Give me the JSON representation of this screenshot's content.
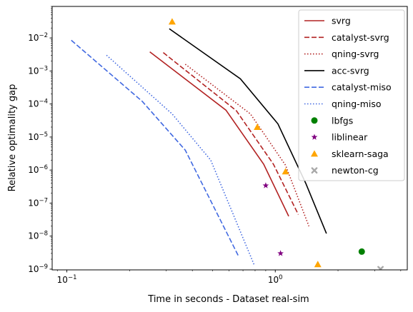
{
  "chart_data": {
    "type": "line",
    "title": "",
    "xlabel": "Time in seconds - Dataset real-sim",
    "ylabel": "Relative optimality gap",
    "xscale": "log",
    "yscale": "log",
    "xlim": [
      0.085,
      4.3
    ],
    "ylim": [
      9.5e-10,
      0.09
    ],
    "x_ticks": [
      {
        "value": 0.1,
        "base": "10",
        "exp": "−1"
      },
      {
        "value": 1,
        "base": "10",
        "exp": "0"
      }
    ],
    "y_ticks": [
      {
        "value": 1e-09,
        "base": "10",
        "exp": "−9"
      },
      {
        "value": 1e-08,
        "base": "10",
        "exp": "−8"
      },
      {
        "value": 1e-07,
        "base": "10",
        "exp": "−7"
      },
      {
        "value": 1e-06,
        "base": "10",
        "exp": "−6"
      },
      {
        "value": 1e-05,
        "base": "10",
        "exp": "−5"
      },
      {
        "value": 0.0001,
        "base": "10",
        "exp": "−4"
      },
      {
        "value": 0.001,
        "base": "10",
        "exp": "−3"
      },
      {
        "value": 0.01,
        "base": "10",
        "exp": "−2"
      }
    ],
    "legend_position": "top-right",
    "series": [
      {
        "name": "svrg",
        "kind": "line",
        "color": "#b22222",
        "dash": "solid",
        "x": [
          0.25,
          0.58,
          0.88,
          1.16
        ],
        "y": [
          0.0038,
          6.5e-05,
          1.5e-06,
          4e-08
        ]
      },
      {
        "name": "catalyst-svrg",
        "kind": "line",
        "color": "#b22222",
        "dash": "dashed",
        "x": [
          0.29,
          0.65,
          0.98,
          1.29
        ],
        "y": [
          0.0036,
          6.3e-05,
          1.5e-06,
          4.5e-08
        ]
      },
      {
        "name": "qning-svrg",
        "kind": "line",
        "color": "#b22222",
        "dash": "dotted",
        "x": [
          0.37,
          0.76,
          1.12,
          1.45
        ],
        "y": [
          0.0016,
          5e-05,
          1.4e-06,
          2e-08
        ]
      },
      {
        "name": "acc-svrg",
        "kind": "line",
        "color": "#000000",
        "dash": "solid",
        "x": [
          0.31,
          0.68,
          1.03,
          1.4,
          1.76
        ],
        "y": [
          0.019,
          0.00058,
          2.5e-05,
          4e-07,
          1.2e-08
        ]
      },
      {
        "name": "catalyst-miso",
        "kind": "line",
        "color": "#4169e1",
        "dash": "dashed",
        "x": [
          0.105,
          0.23,
          0.37,
          0.67
        ],
        "y": [
          0.0085,
          0.00012,
          4e-06,
          2.3e-09
        ]
      },
      {
        "name": "qning-miso",
        "kind": "line",
        "color": "#4169e1",
        "dash": "dotted",
        "x": [
          0.155,
          0.32,
          0.49,
          0.79
        ],
        "y": [
          0.003,
          5e-05,
          2e-06,
          1.4e-09
        ]
      },
      {
        "name": "lbfgs",
        "kind": "marker",
        "marker": "circle",
        "color": "#008000",
        "x": [
          2.6
        ],
        "y": [
          3.4e-09
        ]
      },
      {
        "name": "liblinear",
        "kind": "marker",
        "marker": "star",
        "color": "#800080",
        "x": [
          0.9,
          1.06
        ],
        "y": [
          3.4e-07,
          3e-09
        ]
      },
      {
        "name": "sklearn-saga",
        "kind": "marker",
        "marker": "triangle",
        "color": "#ffa500",
        "x": [
          0.32,
          0.82,
          1.12,
          1.6
        ],
        "y": [
          0.031,
          2e-05,
          9e-07,
          1.4e-09
        ]
      },
      {
        "name": "newton-cg",
        "kind": "marker",
        "marker": "x",
        "color": "#a9a9a9",
        "x": [
          3.2
        ],
        "y": [
          1e-09
        ]
      }
    ]
  }
}
